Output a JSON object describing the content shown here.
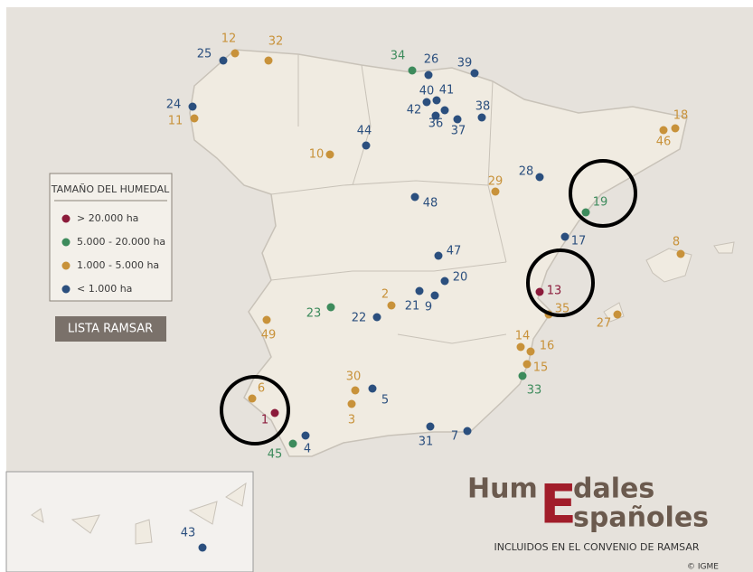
{
  "legend": {
    "title": "TAMAÑO DEL HUMEDAL",
    "items": [
      {
        "label": "> 20.000 ha",
        "color": "#8b1a3a"
      },
      {
        "label": "5.000 - 20.000 ha",
        "color": "#3d8b5c"
      },
      {
        "label": "1.000 - 5.000 ha",
        "color": "#c8923a"
      },
      {
        "label": "< 1.000 ha",
        "color": "#2b4f7e"
      }
    ]
  },
  "button": "LISTA RAMSAR",
  "points": [
    {
      "label": "25",
      "size_class": 3
    },
    {
      "label": "12",
      "size_class": 2
    },
    {
      "label": "32",
      "size_class": 2
    },
    {
      "label": "34",
      "size_class": 1
    },
    {
      "label": "26",
      "size_class": 3
    },
    {
      "label": "39",
      "size_class": 3
    },
    {
      "label": "40",
      "size_class": 3
    },
    {
      "label": "41",
      "size_class": 3
    },
    {
      "label": "42",
      "size_class": 3
    },
    {
      "label": "36",
      "size_class": 3
    },
    {
      "label": "37",
      "size_class": 3
    },
    {
      "label": "38",
      "size_class": 3
    },
    {
      "label": "24",
      "size_class": 3
    },
    {
      "label": "11",
      "size_class": 2
    },
    {
      "label": "44",
      "size_class": 3
    },
    {
      "label": "10",
      "size_class": 2
    },
    {
      "label": "18",
      "size_class": 2
    },
    {
      "label": "46",
      "size_class": 2
    },
    {
      "label": "28",
      "size_class": 3
    },
    {
      "label": "29",
      "size_class": 2
    },
    {
      "label": "48",
      "size_class": 3
    },
    {
      "label": "19",
      "size_class": 1
    },
    {
      "label": "17",
      "size_class": 3
    },
    {
      "label": "8",
      "size_class": 2
    },
    {
      "label": "47",
      "size_class": 3
    },
    {
      "label": "20",
      "size_class": 3
    },
    {
      "label": "13",
      "size_class": 0
    },
    {
      "label": "2",
      "size_class": 2
    },
    {
      "label": "21",
      "size_class": 3
    },
    {
      "label": "9",
      "size_class": 3
    },
    {
      "label": "23",
      "size_class": 1
    },
    {
      "label": "22",
      "size_class": 3
    },
    {
      "label": "35",
      "size_class": 2
    },
    {
      "label": "27",
      "size_class": 2
    },
    {
      "label": "49",
      "size_class": 2
    },
    {
      "label": "14",
      "size_class": 2
    },
    {
      "label": "16",
      "size_class": 2
    },
    {
      "label": "15",
      "size_class": 2
    },
    {
      "label": "33",
      "size_class": 1
    },
    {
      "label": "30",
      "size_class": 2
    },
    {
      "label": "5",
      "size_class": 3
    },
    {
      "label": "6",
      "size_class": 2
    },
    {
      "label": "1",
      "size_class": 0
    },
    {
      "label": "3",
      "size_class": 2
    },
    {
      "label": "31",
      "size_class": 3
    },
    {
      "label": "7",
      "size_class": 3
    },
    {
      "label": "4",
      "size_class": 3
    },
    {
      "label": "45",
      "size_class": 1
    },
    {
      "label": "43",
      "size_class": 3
    }
  ],
  "logo": {
    "part1": "Hum",
    "big_letter": "E",
    "part2": "dales",
    "part3": "spañoles"
  },
  "subtitle": "INCLUIDOS EN EL CONVENIO DE RAMSAR",
  "credit": "© IGME"
}
